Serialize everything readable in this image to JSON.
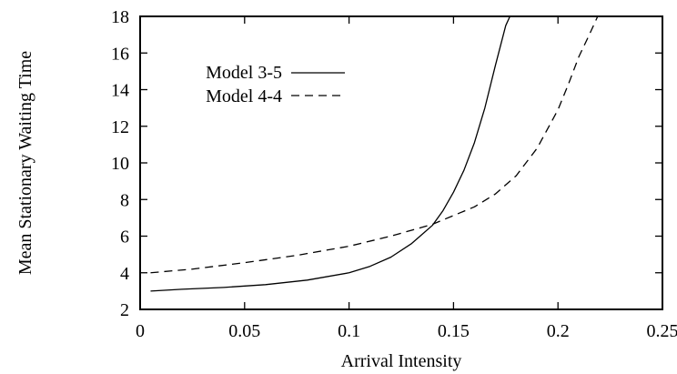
{
  "chart_data": {
    "type": "line",
    "xlabel": "Arrival Intensity",
    "ylabel": "Mean Stationary Waiting Time",
    "xlim": [
      0,
      0.25
    ],
    "ylim": [
      2,
      18
    ],
    "xticks": [
      "0",
      "0.05",
      "0.1",
      "0.15",
      "0.2",
      "0.25"
    ],
    "yticks": [
      "2",
      "4",
      "6",
      "8",
      "10",
      "12",
      "14",
      "16",
      "18"
    ],
    "grid": false,
    "legend_position": "top-left",
    "series": [
      {
        "name": "Model 3-5",
        "line_style": "solid",
        "color": "#000000",
        "x": [
          0.005,
          0.02,
          0.04,
          0.06,
          0.08,
          0.1,
          0.11,
          0.12,
          0.13,
          0.14,
          0.145,
          0.15,
          0.155,
          0.16,
          0.165,
          0.17,
          0.175,
          0.177
        ],
        "y": [
          3.0,
          3.1,
          3.2,
          3.35,
          3.6,
          4.0,
          4.35,
          4.85,
          5.6,
          6.6,
          7.4,
          8.4,
          9.6,
          11.1,
          13.0,
          15.3,
          17.5,
          18.0
        ]
      },
      {
        "name": "Model 4-4",
        "line_style": "dashed",
        "color": "#000000",
        "x": [
          0.005,
          0.025,
          0.05,
          0.075,
          0.1,
          0.12,
          0.14,
          0.16,
          0.17,
          0.18,
          0.19,
          0.2,
          0.205,
          0.21,
          0.215,
          0.219
        ],
        "y": [
          4.0,
          4.2,
          4.55,
          4.95,
          5.45,
          6.0,
          6.65,
          7.6,
          8.3,
          9.3,
          10.8,
          12.9,
          14.3,
          15.8,
          17.0,
          18.0
        ]
      }
    ]
  }
}
